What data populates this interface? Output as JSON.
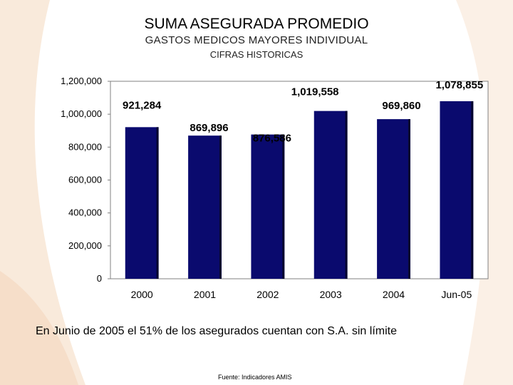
{
  "slide": {
    "title": "SUMA ASEGURADA PROMEDIO",
    "subtitle": "GASTOS MEDICOS MAYORES INDIVIDUAL",
    "subtitle2": "CIFRAS HISTORICAS",
    "note": "En Junio de 2005 el 51% de los asegurados cuentan con S.A. sin límite",
    "source": "Fuente: Indicadores AMIS"
  },
  "colors": {
    "bar": "#0a0a6e",
    "bar_dark": "#03032e",
    "background_accent": "#f6e3d2"
  },
  "chart_data": {
    "type": "bar",
    "categories": [
      "2000",
      "2001",
      "2002",
      "2003",
      "2004",
      "Jun-05"
    ],
    "values": [
      921284,
      869896,
      876586,
      1019558,
      969860,
      1078855
    ],
    "value_labels": [
      "921,284",
      "869,896",
      "876,586",
      "1,019,558",
      "969,860",
      "1,078,855"
    ],
    "ylim": [
      0,
      1200000
    ],
    "yticks": [
      0,
      200000,
      400000,
      600000,
      800000,
      1000000,
      1200000
    ],
    "ytick_labels": [
      "0",
      "200,000",
      "400,000",
      "600,000",
      "800,000",
      "1,000,000",
      "1,200,000"
    ],
    "grid": false,
    "legend": "none"
  }
}
